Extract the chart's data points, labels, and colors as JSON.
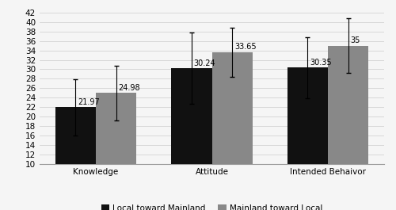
{
  "categories": [
    "Knowledge",
    "Attitude",
    "Intended Behaivor"
  ],
  "local_values": [
    21.97,
    30.24,
    30.35
  ],
  "mainland_values": [
    24.98,
    33.65,
    35.0
  ],
  "local_errors": [
    5.9,
    7.5,
    6.4
  ],
  "mainland_errors": [
    5.8,
    5.2,
    5.8
  ],
  "local_color": "#111111",
  "mainland_color": "#888888",
  "local_label": "Local toward Mainland",
  "mainland_label": "Mainland toward Local",
  "ylim": [
    10,
    42
  ],
  "yticks": [
    10,
    12,
    14,
    16,
    18,
    20,
    22,
    24,
    26,
    28,
    30,
    32,
    34,
    36,
    38,
    40,
    42
  ],
  "bar_width": 0.35,
  "value_fontsize": 7.0,
  "axis_fontsize": 7.5,
  "legend_fontsize": 7.5,
  "background_color": "#f5f5f5"
}
